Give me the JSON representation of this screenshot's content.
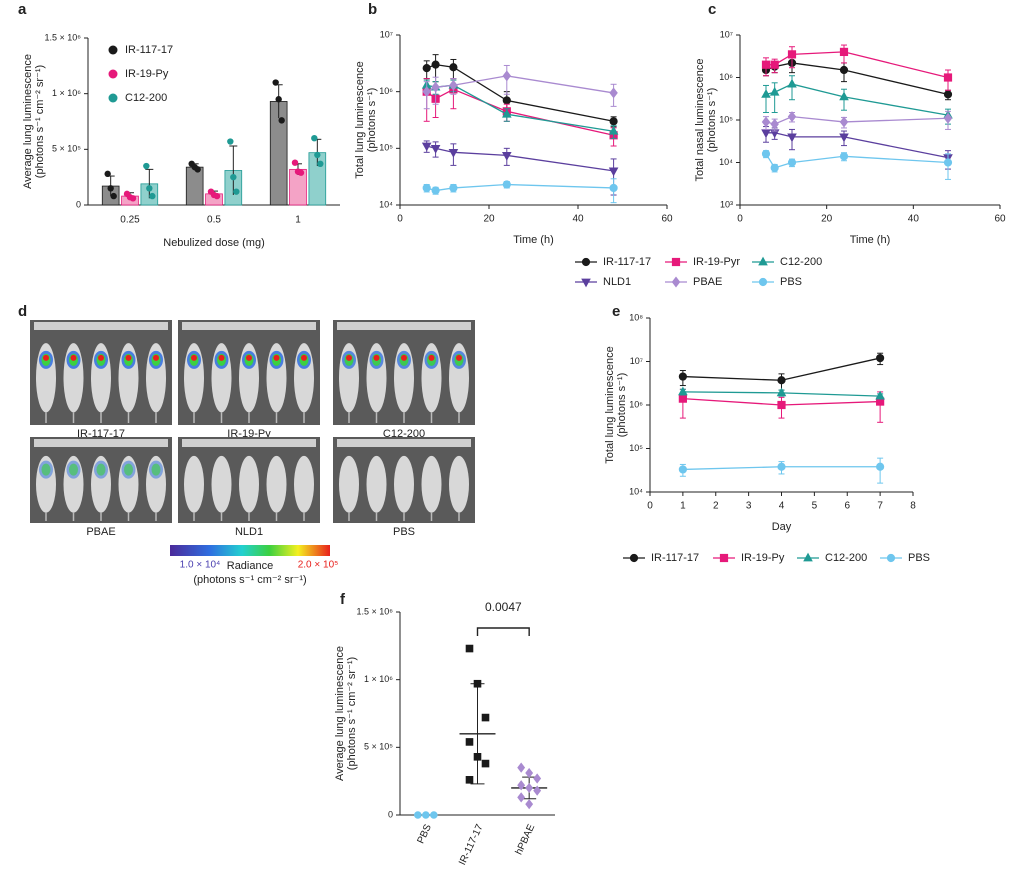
{
  "panel_labels": [
    "a",
    "b",
    "c",
    "d",
    "e",
    "f"
  ],
  "image_panel": {
    "labels": [
      "IR-117-17",
      "IR-19-Py",
      "C12-200",
      "PBAE",
      "NLD1",
      "PBS"
    ],
    "colorbar": {
      "min_label": "1.0 × 10⁴",
      "max_label": "2.0 × 10⁵",
      "title": [
        "Radiance",
        "(photons s⁻¹ cm⁻² sr⁻¹)"
      ]
    }
  },
  "chart_data": [
    {
      "type": "bar",
      "xlabel": "Nebulized dose (mg)",
      "ylabel": [
        "Average lung luminescence",
        "(photons s⁻¹ cm⁻² sr⁻¹)"
      ],
      "categories": [
        "0.25",
        "0.5",
        "1"
      ],
      "ylim": [
        0,
        1500000
      ],
      "yticks": [
        0,
        {
          "value": 500000,
          "label": "5 × 10⁵"
        },
        {
          "value": 1000000,
          "label": "1 × 10⁶"
        },
        {
          "value": 1500000,
          "label": "1.5 × 10⁶"
        }
      ],
      "legend": "upper left",
      "series": [
        {
          "name": "IR-117-17",
          "color": "#1a1a1a",
          "bar_color": "#8c8c8c",
          "values": [
            170000,
            340000,
            930000
          ],
          "errors": [
            90000,
            30000,
            150000
          ],
          "points": [
            [
              280000,
              150000,
              80000
            ],
            [
              370000,
              340000,
              320000
            ],
            [
              1100000,
              950000,
              760000
            ]
          ]
        },
        {
          "name": "IR-19-Py",
          "color": "#e6197a",
          "bar_color": "#f4a3c6",
          "values": [
            80000,
            100000,
            320000
          ],
          "errors": [
            30000,
            25000,
            50000
          ],
          "points": [
            [
              100000,
              70000,
              60000
            ],
            [
              120000,
              90000,
              80000
            ],
            [
              380000,
              300000,
              290000
            ]
          ]
        },
        {
          "name": "C12-200",
          "color": "#1f9a94",
          "bar_color": "#8fd0cc",
          "values": [
            190000,
            310000,
            470000
          ],
          "errors": [
            130000,
            220000,
            120000
          ],
          "points": [
            [
              350000,
              150000,
              80000
            ],
            [
              570000,
              250000,
              120000
            ],
            [
              600000,
              450000,
              370000
            ]
          ]
        }
      ]
    },
    {
      "type": "line",
      "xlabel": "Time (h)",
      "ylabel": [
        "Total lung luminescence",
        "(photons s⁻¹)"
      ],
      "x": [
        6,
        8,
        12,
        24,
        48
      ],
      "xlim": [
        0,
        60
      ],
      "xticks": [
        0,
        20,
        40,
        60
      ],
      "log_y": true,
      "ylim": [
        10000,
        10000000
      ],
      "yticks": [
        {
          "value": 10000,
          "label": "10⁴"
        },
        {
          "value": 100000,
          "label": "10⁵"
        },
        {
          "value": 1000000,
          "label": "10⁶"
        },
        {
          "value": 10000000,
          "label": "10⁷"
        }
      ],
      "legend": "below",
      "series": [
        {
          "name": "IR-117-17",
          "color": "#1a1a1a",
          "marker": "circle",
          "values": [
            2600000,
            3000000,
            2700000,
            700000,
            300000
          ],
          "errors": [
            900000,
            1500000,
            1000000,
            300000,
            60000
          ]
        },
        {
          "name": "IR-19-Pyr",
          "color": "#e6197a",
          "marker": "square",
          "values": [
            1000000,
            750000,
            1100000,
            450000,
            170000
          ],
          "errors": [
            700000,
            400000,
            600000,
            150000,
            60000
          ]
        },
        {
          "name": "C12-200",
          "color": "#1f9a94",
          "marker": "triangle",
          "values": [
            1300000,
            1200000,
            1300000,
            400000,
            200000
          ],
          "errors": [
            300000,
            300000,
            300000,
            100000,
            50000
          ]
        },
        {
          "name": "NLD1",
          "color": "#5b3f9e",
          "marker": "triangle-down",
          "values": [
            110000,
            100000,
            85000,
            75000,
            40000
          ],
          "errors": [
            25000,
            30000,
            35000,
            25000,
            25000
          ]
        },
        {
          "name": "PBAE",
          "color": "#a98ad0",
          "marker": "diamond",
          "values": [
            1000000,
            1200000,
            1300000,
            1900000,
            950000
          ],
          "errors": [
            500000,
            600000,
            400000,
            1000000,
            400000
          ]
        },
        {
          "name": "PBS",
          "color": "#6ec6ee",
          "marker": "circle",
          "values": [
            20000,
            18000,
            20000,
            23000,
            20000
          ],
          "errors": [
            3000,
            2500,
            3000,
            3000,
            9000
          ]
        }
      ]
    },
    {
      "type": "line",
      "xlabel": "Time (h)",
      "ylabel": [
        "Total nasal luminescence",
        "(photons s⁻¹)"
      ],
      "x": [
        6,
        8,
        12,
        24,
        48
      ],
      "xlim": [
        0,
        60
      ],
      "xticks": [
        0,
        20,
        40,
        60
      ],
      "log_y": true,
      "ylim": [
        1000,
        10000000
      ],
      "yticks": [
        {
          "value": 1000,
          "label": "10³"
        },
        {
          "value": 10000,
          "label": "10⁴"
        },
        {
          "value": 100000,
          "label": "10⁵"
        },
        {
          "value": 1000000,
          "label": "10⁶"
        },
        {
          "value": 10000000,
          "label": "10⁷"
        }
      ],
      "series": [
        {
          "color": "#1a1a1a",
          "marker": "circle",
          "values": [
            1500000,
            1800000,
            2200000,
            1500000,
            400000
          ],
          "errors": [
            400000,
            500000,
            900000,
            700000,
            100000
          ]
        },
        {
          "color": "#e6197a",
          "marker": "square",
          "values": [
            2000000,
            2000000,
            3500000,
            4000000,
            1000000
          ],
          "errors": [
            900000,
            700000,
            1800000,
            1800000,
            500000
          ]
        },
        {
          "color": "#1f9a94",
          "marker": "triangle",
          "values": [
            400000,
            450000,
            700000,
            350000,
            130000
          ],
          "errors": [
            250000,
            300000,
            400000,
            180000,
            50000
          ]
        },
        {
          "color": "#5b3f9e",
          "marker": "triangle-down",
          "values": [
            50000,
            50000,
            40000,
            40000,
            13000
          ],
          "errors": [
            20000,
            15000,
            20000,
            15000,
            6000
          ]
        },
        {
          "color": "#a98ad0",
          "marker": "diamond",
          "values": [
            90000,
            80000,
            120000,
            90000,
            110000
          ],
          "errors": [
            30000,
            25000,
            30000,
            25000,
            50000
          ]
        },
        {
          "color": "#6ec6ee",
          "marker": "circle",
          "values": [
            16000,
            7500,
            10000,
            14000,
            10000
          ],
          "errors": [
            3000,
            1500,
            2000,
            3000,
            6000
          ]
        }
      ]
    },
    {
      "type": "line",
      "xlabel": "Day",
      "ylabel": [
        "Total lung luminescence",
        "(photons s⁻¹)"
      ],
      "x": [
        1,
        4,
        7
      ],
      "xlim": [
        0,
        8
      ],
      "xticks": [
        0,
        1,
        2,
        3,
        4,
        5,
        6,
        7,
        8
      ],
      "log_y": true,
      "ylim": [
        10000,
        100000000
      ],
      "yticks": [
        {
          "value": 10000,
          "label": "10⁴"
        },
        {
          "value": 100000,
          "label": "10⁵"
        },
        {
          "value": 1000000,
          "label": "10⁶"
        },
        {
          "value": 10000000,
          "label": "10⁷"
        },
        {
          "value": 100000000,
          "label": "10⁸"
        }
      ],
      "legend": "below",
      "series": [
        {
          "name": "IR-117-17",
          "color": "#1a1a1a",
          "marker": "circle",
          "values": [
            4500000,
            3700000,
            12000000
          ],
          "errors": [
            1700000,
            1500000,
            3500000
          ]
        },
        {
          "name": "IR-19-Py",
          "color": "#e6197a",
          "marker": "square",
          "values": [
            1400000,
            1000000,
            1200000
          ],
          "errors": [
            900000,
            500000,
            800000
          ]
        },
        {
          "name": "C12-200",
          "color": "#1f9a94",
          "marker": "triangle",
          "values": [
            2000000,
            1900000,
            1600000
          ],
          "errors": [
            300000,
            300000,
            200000
          ]
        },
        {
          "name": "PBS",
          "color": "#6ec6ee",
          "marker": "circle",
          "values": [
            33000,
            38000,
            38000
          ],
          "errors": [
            10000,
            12000,
            22000
          ]
        }
      ]
    },
    {
      "type": "strip",
      "ylabel": [
        "Average lung luminescence",
        "(photons s⁻¹ cm⁻² sr⁻¹)"
      ],
      "categories": [
        "PBS",
        "IR-117-17",
        "hPBAE"
      ],
      "ylim": [
        0,
        1500000
      ],
      "yticks": [
        0,
        {
          "value": 500000,
          "label": "5 × 10⁵"
        },
        {
          "value": 1000000,
          "label": "1 × 10⁶"
        },
        {
          "value": 1500000,
          "label": "1.5 × 10⁶"
        }
      ],
      "colors": [
        "#6ec6ee",
        "#1a1a1a",
        "#a98ad0"
      ],
      "markers": [
        "circle",
        "square",
        "diamond"
      ],
      "points": [
        [
          0,
          0,
          0
        ],
        [
          1230000,
          970000,
          720000,
          540000,
          430000,
          380000,
          260000
        ],
        [
          350000,
          310000,
          270000,
          220000,
          200000,
          180000,
          130000,
          80000
        ]
      ],
      "means": [
        null,
        600000,
        200000
      ],
      "sds": [
        null,
        370000,
        80000
      ],
      "annotation": "0.0047"
    }
  ]
}
